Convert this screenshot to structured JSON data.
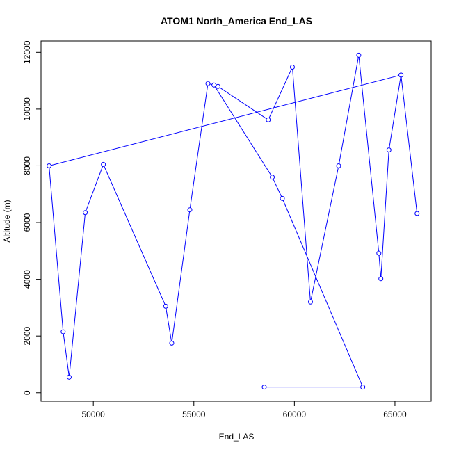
{
  "chart_data": {
    "type": "line",
    "title": "ATOM1 North_America End_LAS",
    "xlabel": "End_LAS",
    "ylabel": "Altitude (m)",
    "xlim": [
      47400,
      66800
    ],
    "ylim": [
      -300,
      12400
    ],
    "x_ticks": [
      50000,
      55000,
      60000,
      65000
    ],
    "x_tick_labels": [
      "50000",
      "55000",
      "60000",
      "65000"
    ],
    "y_ticks": [
      0,
      2000,
      4000,
      6000,
      8000,
      10000,
      12000
    ],
    "y_tick_labels": [
      "0",
      "2000",
      "4000",
      "6000",
      "8000",
      "10000",
      "12000"
    ],
    "grid": false,
    "color": "#0000ff",
    "markers": "open-circle",
    "series": [
      {
        "x": [
          65300,
          47800,
          48500,
          48800,
          49600,
          50500,
          53600,
          53900,
          54800,
          55700,
          56000,
          58900,
          59400,
          63400,
          58500
        ],
        "y": [
          11200,
          8000,
          2150,
          550,
          6350,
          8050,
          3050,
          1750,
          6450,
          10900,
          10850,
          7600,
          6850,
          200,
          200
        ]
      },
      {
        "x": [
          56200,
          58700,
          59900,
          60800,
          62200,
          63200,
          64200,
          64300,
          64700,
          65300,
          66100
        ],
        "y": [
          10800,
          9620,
          11480,
          3200,
          8000,
          11900,
          4920,
          4020,
          8560,
          11200,
          6320
        ]
      }
    ]
  }
}
